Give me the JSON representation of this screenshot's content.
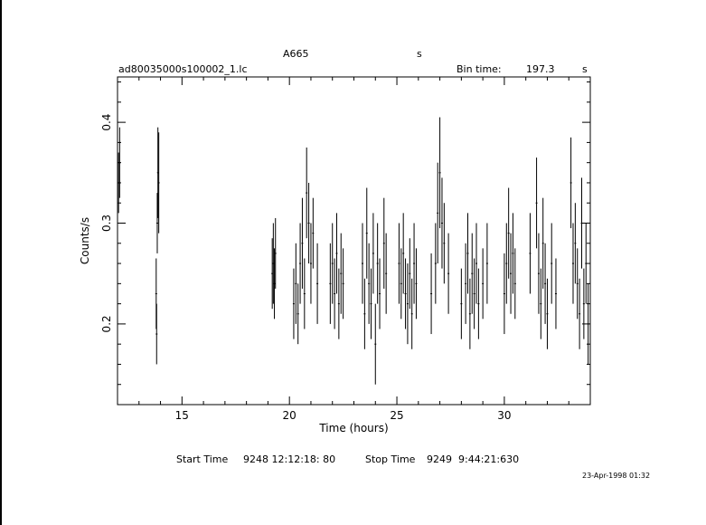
{
  "header": {
    "object": "A665",
    "unit_s": "s",
    "filename": "ad80035000s100002_1.lc",
    "bin_time_label": "Bin time:",
    "bin_time_value": "197.3",
    "bin_time_unit": "s"
  },
  "footer": {
    "start_label": "Start Time",
    "start_value": "9248 12:12:18: 80",
    "stop_label": "Stop Time",
    "stop_value": "9249  9:44:21:630",
    "timestamp": "23-Apr-1998 01:32"
  },
  "chart_data": {
    "type": "scatter",
    "title": "",
    "xlabel": "Time (hours)",
    "ylabel": "Counts/s",
    "xlim": [
      12.0,
      34.0
    ],
    "ylim": [
      0.12,
      0.445
    ],
    "xticks": [
      15,
      20,
      25,
      30
    ],
    "yticks": [
      0.2,
      0.3,
      0.4
    ],
    "xtick_labels": [
      "15",
      "20",
      "25",
      "30"
    ],
    "ytick_labels": [
      "0.2",
      "0.3",
      "0.4"
    ],
    "grid": false,
    "error_bars": true,
    "series": [
      {
        "points": [
          [
            12.05,
            0.34,
            0.03
          ],
          [
            12.1,
            0.36,
            0.035
          ],
          [
            13.8,
            0.23,
            0.035
          ],
          [
            13.82,
            0.19,
            0.03
          ],
          [
            13.85,
            0.3,
            0.03
          ],
          [
            13.88,
            0.35,
            0.045
          ],
          [
            13.92,
            0.34,
            0.05
          ],
          [
            19.2,
            0.25,
            0.035
          ],
          [
            19.25,
            0.26,
            0.04
          ],
          [
            19.3,
            0.24,
            0.035
          ],
          [
            19.35,
            0.27,
            0.035
          ],
          [
            20.2,
            0.22,
            0.035
          ],
          [
            20.3,
            0.24,
            0.04
          ],
          [
            20.4,
            0.21,
            0.03
          ],
          [
            20.5,
            0.26,
            0.04
          ],
          [
            20.6,
            0.28,
            0.045
          ],
          [
            20.7,
            0.23,
            0.035
          ],
          [
            20.8,
            0.33,
            0.045
          ],
          [
            20.9,
            0.3,
            0.04
          ],
          [
            21.0,
            0.26,
            0.04
          ],
          [
            21.1,
            0.29,
            0.035
          ],
          [
            21.3,
            0.24,
            0.04
          ],
          [
            21.9,
            0.24,
            0.04
          ],
          [
            22.0,
            0.26,
            0.04
          ],
          [
            22.1,
            0.23,
            0.035
          ],
          [
            22.2,
            0.27,
            0.04
          ],
          [
            22.3,
            0.22,
            0.035
          ],
          [
            22.4,
            0.25,
            0.04
          ],
          [
            22.5,
            0.24,
            0.035
          ],
          [
            23.4,
            0.26,
            0.04
          ],
          [
            23.5,
            0.21,
            0.035
          ],
          [
            23.6,
            0.29,
            0.045
          ],
          [
            23.7,
            0.24,
            0.04
          ],
          [
            23.8,
            0.22,
            0.035
          ],
          [
            23.9,
            0.27,
            0.04
          ],
          [
            24.0,
            0.18,
            0.04
          ],
          [
            24.1,
            0.26,
            0.04
          ],
          [
            24.2,
            0.23,
            0.035
          ],
          [
            24.4,
            0.28,
            0.045
          ],
          [
            24.5,
            0.25,
            0.04
          ],
          [
            25.1,
            0.26,
            0.04
          ],
          [
            25.2,
            0.24,
            0.035
          ],
          [
            25.3,
            0.27,
            0.04
          ],
          [
            25.4,
            0.23,
            0.035
          ],
          [
            25.5,
            0.22,
            0.04
          ],
          [
            25.6,
            0.25,
            0.035
          ],
          [
            25.7,
            0.21,
            0.035
          ],
          [
            25.8,
            0.26,
            0.04
          ],
          [
            25.9,
            0.24,
            0.035
          ],
          [
            26.6,
            0.23,
            0.04
          ],
          [
            26.8,
            0.26,
            0.04
          ],
          [
            26.9,
            0.31,
            0.05
          ],
          [
            27.0,
            0.35,
            0.055
          ],
          [
            27.1,
            0.3,
            0.045
          ],
          [
            27.2,
            0.28,
            0.04
          ],
          [
            27.4,
            0.25,
            0.04
          ],
          [
            28.0,
            0.22,
            0.035
          ],
          [
            28.2,
            0.24,
            0.04
          ],
          [
            28.3,
            0.27,
            0.04
          ],
          [
            28.4,
            0.21,
            0.035
          ],
          [
            28.5,
            0.25,
            0.04
          ],
          [
            28.6,
            0.23,
            0.035
          ],
          [
            28.7,
            0.26,
            0.04
          ],
          [
            28.8,
            0.22,
            0.035
          ],
          [
            29.0,
            0.24,
            0.035
          ],
          [
            29.2,
            0.26,
            0.04
          ],
          [
            30.0,
            0.23,
            0.04
          ],
          [
            30.1,
            0.26,
            0.04
          ],
          [
            30.2,
            0.29,
            0.045
          ],
          [
            30.3,
            0.25,
            0.04
          ],
          [
            30.4,
            0.27,
            0.04
          ],
          [
            30.5,
            0.24,
            0.035
          ],
          [
            31.2,
            0.27,
            0.04
          ],
          [
            31.5,
            0.32,
            0.045
          ],
          [
            31.6,
            0.25,
            0.04
          ],
          [
            31.7,
            0.22,
            0.035
          ],
          [
            31.8,
            0.28,
            0.045
          ],
          [
            31.9,
            0.24,
            0.04
          ],
          [
            32.0,
            0.21,
            0.035
          ],
          [
            32.2,
            0.26,
            0.04
          ],
          [
            32.4,
            0.23,
            0.035
          ],
          [
            33.1,
            0.34,
            0.045
          ],
          [
            33.2,
            0.26,
            0.04
          ],
          [
            33.3,
            0.28,
            0.04
          ],
          [
            33.4,
            0.24,
            0.035
          ],
          [
            33.5,
            0.21,
            0.035
          ],
          [
            33.6,
            0.3,
            0.045
          ],
          [
            33.7,
            0.22,
            0.035
          ],
          [
            33.8,
            0.26,
            0.04
          ],
          [
            33.9,
            0.2,
            0.04
          ]
        ]
      }
    ]
  }
}
